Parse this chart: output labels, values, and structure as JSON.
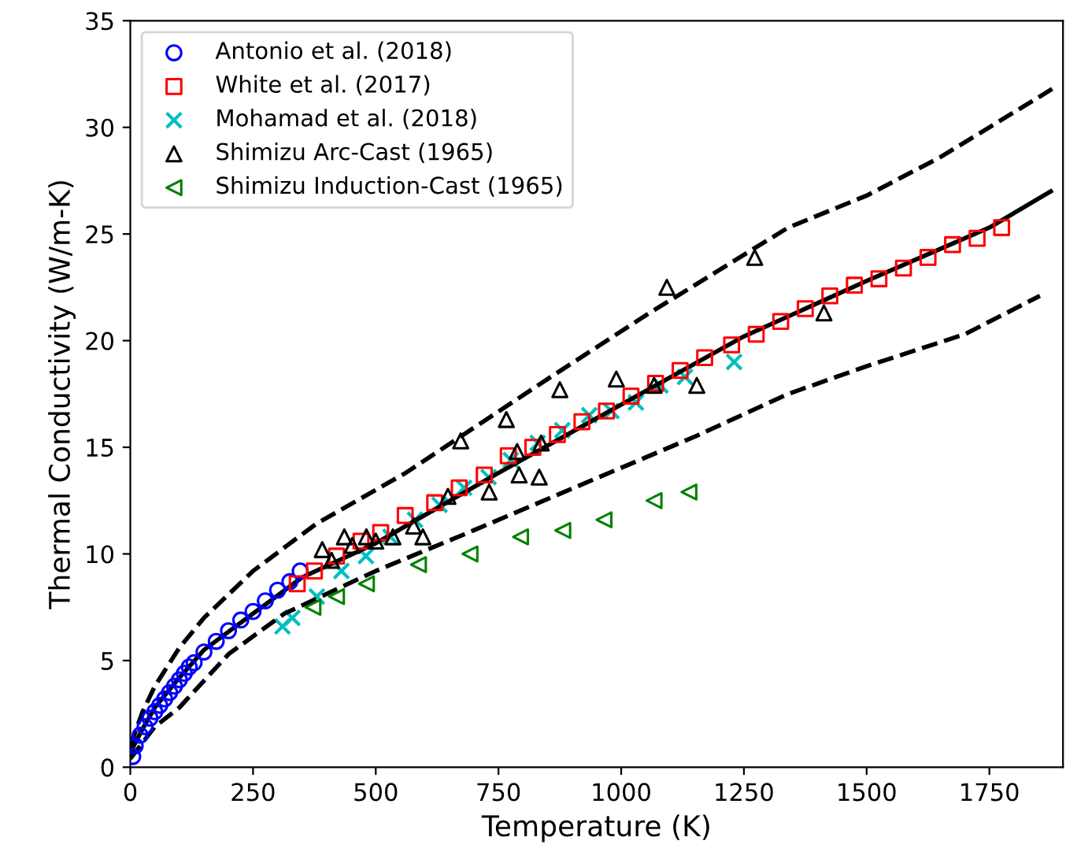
{
  "chart_data": {
    "type": "scatter",
    "xlabel": "Temperature (K)",
    "ylabel": "Thermal Conductivity (W/m-K)",
    "xlim": [
      0,
      1900
    ],
    "ylim": [
      0,
      35
    ],
    "xticks": [
      0,
      250,
      500,
      750,
      1000,
      1250,
      1500,
      1750
    ],
    "yticks": [
      0,
      5,
      10,
      15,
      20,
      25,
      30,
      35
    ],
    "grid": false,
    "legend": "top left",
    "series": [
      {
        "type": "line",
        "color": "#000000",
        "line_style": "solid",
        "marker": "none",
        "x": [
          0,
          25,
          50,
          100,
          150,
          250,
          350,
          500,
          750,
          1000,
          1250,
          1500,
          1650,
          1750,
          1875
        ],
        "values": [
          0.7,
          1.8,
          2.8,
          4.2,
          5.5,
          7.2,
          8.9,
          10.5,
          13.8,
          17.0,
          20.2,
          22.8,
          24.3,
          25.3,
          27.0
        ]
      },
      {
        "type": "line",
        "color": "#000000",
        "line_style": "dashed",
        "marker": "none",
        "x": [
          0,
          25,
          50,
          100,
          150,
          250,
          378,
          561,
          699,
          850,
          1051,
          1340,
          1500,
          1650,
          1878
        ],
        "values": [
          1.0,
          2.6,
          3.8,
          5.6,
          7.0,
          9.2,
          11.4,
          13.8,
          15.9,
          18.2,
          21.2,
          25.3,
          26.8,
          28.6,
          31.8
        ]
      },
      {
        "type": "line",
        "color": "#000000",
        "line_style": "dashed",
        "marker": "none",
        "x": [
          0,
          50,
          100,
          200,
          314,
          500,
          699,
          955,
          1150,
          1340,
          1500,
          1700,
          1853
        ],
        "values": [
          0.4,
          1.9,
          2.8,
          5.3,
          7.2,
          9.2,
          11.1,
          13.6,
          15.5,
          17.5,
          18.8,
          20.3,
          22.1
        ]
      },
      {
        "name": "Antonio et al. (2018)",
        "color": "#0000ff",
        "marker": "circle",
        "x": [
          5,
          10,
          20,
          30,
          40,
          50,
          60,
          70,
          80,
          90,
          100,
          110,
          120,
          130,
          150,
          175,
          200,
          225,
          250,
          275,
          300,
          325,
          346
        ],
        "values": [
          0.5,
          1.0,
          1.5,
          1.9,
          2.3,
          2.6,
          2.9,
          3.2,
          3.5,
          3.8,
          4.1,
          4.4,
          4.7,
          4.9,
          5.4,
          5.9,
          6.4,
          6.9,
          7.3,
          7.8,
          8.3,
          8.7,
          9.2
        ]
      },
      {
        "name": "White et al. (2017)",
        "color": "#ff0000",
        "marker": "square",
        "x": [
          340,
          375,
          420,
          470,
          510,
          560,
          620,
          670,
          721,
          770,
          820,
          870,
          920,
          970,
          1020,
          1070,
          1120,
          1170,
          1225,
          1275,
          1325,
          1375,
          1425,
          1475,
          1525,
          1575,
          1625,
          1675,
          1725,
          1775
        ],
        "values": [
          8.6,
          9.2,
          9.9,
          10.6,
          11.0,
          11.8,
          12.4,
          13.1,
          13.7,
          14.6,
          15.0,
          15.6,
          16.2,
          16.7,
          17.4,
          18.0,
          18.6,
          19.2,
          19.8,
          20.3,
          20.9,
          21.5,
          22.1,
          22.6,
          22.9,
          23.4,
          23.9,
          24.5,
          24.8,
          25.3
        ]
      },
      {
        "name": "Mohamad et al. (2018)",
        "color": "#00bfbf",
        "marker": "cross",
        "x": [
          310,
          330,
          380,
          430,
          480,
          530,
          580,
          630,
          680,
          730,
          775,
          830,
          880,
          935,
          980,
          1030,
          1080,
          1130,
          1230
        ],
        "values": [
          6.6,
          7.0,
          8.0,
          9.2,
          9.9,
          10.8,
          11.6,
          12.3,
          13.1,
          13.6,
          14.4,
          15.2,
          15.8,
          16.5,
          16.7,
          17.1,
          17.9,
          18.3,
          19.0
        ]
      },
      {
        "name": "Shimizu Arc-Cast (1965)",
        "color": "#000000",
        "marker": "triangle",
        "x": [
          391,
          410,
          436,
          452,
          481,
          500,
          535,
          577,
          596,
          647,
          673,
          731,
          766,
          788,
          792,
          833,
          837,
          875,
          990,
          1067,
          1093,
          1154,
          1272,
          1413
        ],
        "values": [
          10.2,
          9.7,
          10.8,
          10.4,
          10.8,
          10.6,
          10.8,
          11.3,
          10.8,
          12.7,
          15.3,
          12.9,
          16.3,
          14.8,
          13.7,
          13.6,
          15.2,
          17.7,
          18.2,
          17.9,
          22.5,
          17.9,
          23.9,
          21.3
        ]
      },
      {
        "name": "Shimizu Induction-Cast (1965)",
        "color": "#008000",
        "marker": "triangle_left",
        "x": [
          372,
          420,
          481,
          587,
          692,
          795,
          881,
          965,
          1067,
          1138
        ],
        "values": [
          7.5,
          8.0,
          8.6,
          9.5,
          10.0,
          10.8,
          11.1,
          11.6,
          12.5,
          12.9
        ]
      }
    ]
  }
}
